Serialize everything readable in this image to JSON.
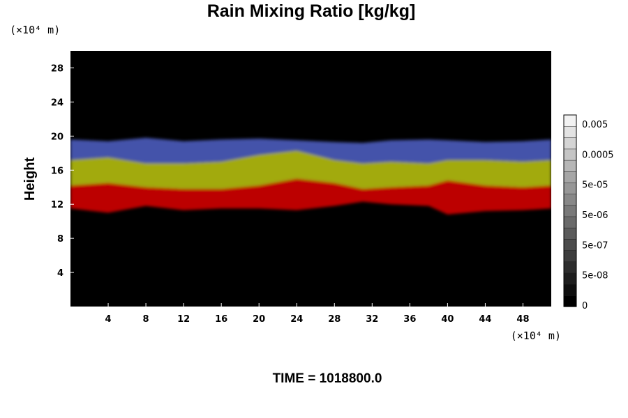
{
  "chart_data": {
    "type": "heatmap",
    "title": "Rain Mixing Ratio [kg/kg]",
    "ylabel": "Height",
    "x_unit_label": "(×10⁴ m)",
    "y_unit_label": "(×10⁴ m)",
    "xlim": [
      0,
      51
    ],
    "ylim": [
      0,
      30
    ],
    "x_ticks": [
      4,
      8,
      12,
      16,
      20,
      24,
      28,
      32,
      36,
      40,
      44,
      48
    ],
    "y_ticks": [
      4,
      8,
      12,
      16,
      20,
      24,
      28
    ],
    "background_color": "#000000",
    "layers": [
      {
        "color": "#cc0000",
        "x": [
          0,
          4,
          8,
          12,
          16,
          20,
          24,
          28,
          31,
          34,
          38,
          40,
          44,
          48,
          51
        ],
        "bottom": [
          11.5,
          11.0,
          11.8,
          11.3,
          11.5,
          11.5,
          11.3,
          11.8,
          12.3,
          12.0,
          11.8,
          10.8,
          11.2,
          11.3,
          11.5
        ],
        "top": [
          14.2,
          14.5,
          14.0,
          13.8,
          13.8,
          14.2,
          15.0,
          14.5,
          13.8,
          14.0,
          14.2,
          14.8,
          14.2,
          14.0,
          14.2
        ]
      },
      {
        "color": "#b0b810",
        "x": [
          0,
          4,
          8,
          12,
          16,
          20,
          24,
          28,
          31,
          34,
          38,
          40,
          44,
          48,
          51
        ],
        "bottom": [
          14.2,
          14.5,
          14.0,
          13.8,
          13.8,
          14.2,
          15.0,
          14.5,
          13.8,
          14.0,
          14.2,
          14.8,
          14.2,
          14.0,
          14.2
        ],
        "top": [
          17.2,
          17.5,
          16.8,
          16.8,
          17.0,
          17.8,
          18.3,
          17.2,
          16.8,
          17.0,
          16.8,
          17.2,
          17.2,
          17.0,
          17.2
        ]
      },
      {
        "color": "#4a5ab8",
        "x": [
          0,
          4,
          8,
          12,
          16,
          20,
          24,
          28,
          31,
          34,
          38,
          40,
          44,
          48,
          51
        ],
        "bottom": [
          17.2,
          17.5,
          16.8,
          16.8,
          17.0,
          17.8,
          18.3,
          17.2,
          16.8,
          17.0,
          16.8,
          17.2,
          17.2,
          17.0,
          17.2
        ],
        "top": [
          19.6,
          19.4,
          19.8,
          19.4,
          19.6,
          19.7,
          19.5,
          19.3,
          19.2,
          19.5,
          19.6,
          19.5,
          19.3,
          19.4,
          19.6
        ]
      }
    ],
    "colorbar": {
      "tick_labels": [
        "0",
        "5e-08",
        "5e-07",
        "5e-06",
        "5e-05",
        "0.0005",
        "0.005"
      ],
      "levels": 17,
      "color_low": "#000000",
      "color_high": "#f2f2f2"
    },
    "footer_text": "TIME = 1018800.0"
  }
}
